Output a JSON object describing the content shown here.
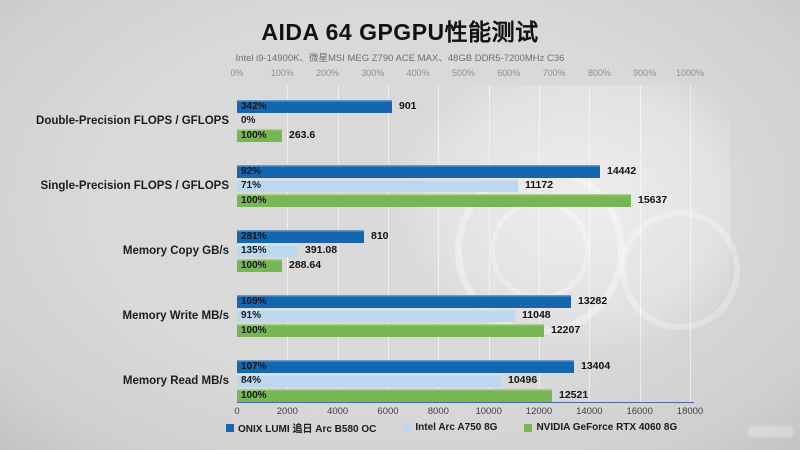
{
  "title": "AIDA 64 GPGPU性能测试",
  "subtitle": "Intel i9-14900K、微星MSI  MEG Z790 ACE MAX、48GB DDR5-7200MHz C36",
  "colors": {
    "series": [
      "#1466AF",
      "#BDD7EE",
      "#78B553"
    ],
    "axis_line": "#4A6DA0",
    "background": "#D9D9D9",
    "grid": "rgba(255,255,255,0.55)"
  },
  "chart_data": {
    "type": "bar",
    "orientation": "horizontal",
    "title": "AIDA 64 GPGPU性能测试",
    "subtitle": "Intel i9-14900K、微星MSI MEG Z790 ACE MAX、48GB DDR5-7200MHz C36",
    "series": [
      "ONIX LUMI 追日 Arc B580 OC",
      "Intel Arc A750 8G",
      "NVIDIA GeForce RTX 4060 8G"
    ],
    "categories": [
      "Double-Precision FLOPS / GFLOPS",
      "Single-Precision FLOPS / GFLOPS",
      "Memory Copy GB/s",
      "Memory Write MB/s",
      "Memory Read MB/s"
    ],
    "values": [
      [
        901,
        0,
        263.6
      ],
      [
        14442,
        11172,
        15637
      ],
      [
        810,
        391.08,
        288.64
      ],
      [
        13282,
        11048,
        12207
      ],
      [
        13404,
        10496,
        12521
      ]
    ],
    "percents": [
      [
        342,
        0,
        100
      ],
      [
        92,
        71,
        100
      ],
      [
        281,
        135,
        100
      ],
      [
        109,
        91,
        100
      ],
      [
        107,
        84,
        100
      ]
    ],
    "percent_labels": [
      [
        "342%",
        "0%",
        "100%"
      ],
      [
        "92%",
        "71%",
        "100%"
      ],
      [
        "281%",
        "135%",
        "100%"
      ],
      [
        "109%",
        "91%",
        "100%"
      ],
      [
        "107%",
        "84%",
        "100%"
      ]
    ],
    "value_labels": [
      [
        "901",
        "",
        "263.6"
      ],
      [
        "14442",
        "11172",
        "15637"
      ],
      [
        "810",
        "391.08",
        "288.64"
      ],
      [
        "13282",
        "11048",
        "12207"
      ],
      [
        "13404",
        "10496",
        "12521"
      ]
    ],
    "bar_scale_per_category": [
      "percent",
      "value",
      "percent",
      "value",
      "value"
    ],
    "top_axis": {
      "unit": "percent",
      "min": 0,
      "max": 1000,
      "tick_labels": [
        "0%",
        "100%",
        "200%",
        "300%",
        "400%",
        "500%",
        "600%",
        "700%",
        "800%",
        "900%",
        "1000%"
      ]
    },
    "bottom_axis": {
      "unit": "value",
      "min": 0,
      "max": 18000,
      "tick_labels": [
        "0",
        "2000",
        "4000",
        "6000",
        "8000",
        "10000",
        "12000",
        "14000",
        "16000",
        "18000"
      ]
    },
    "grid": true,
    "legend_position": "bottom",
    "legend": [
      {
        "label": "ONIX LUMI 追日 Arc B580 OC",
        "color": "#1466AF"
      },
      {
        "label": "Intel Arc A750 8G",
        "color": "#BDD7EE"
      },
      {
        "label": "NVIDIA GeForce RTX 4060 8G",
        "color": "#78B553"
      }
    ]
  }
}
